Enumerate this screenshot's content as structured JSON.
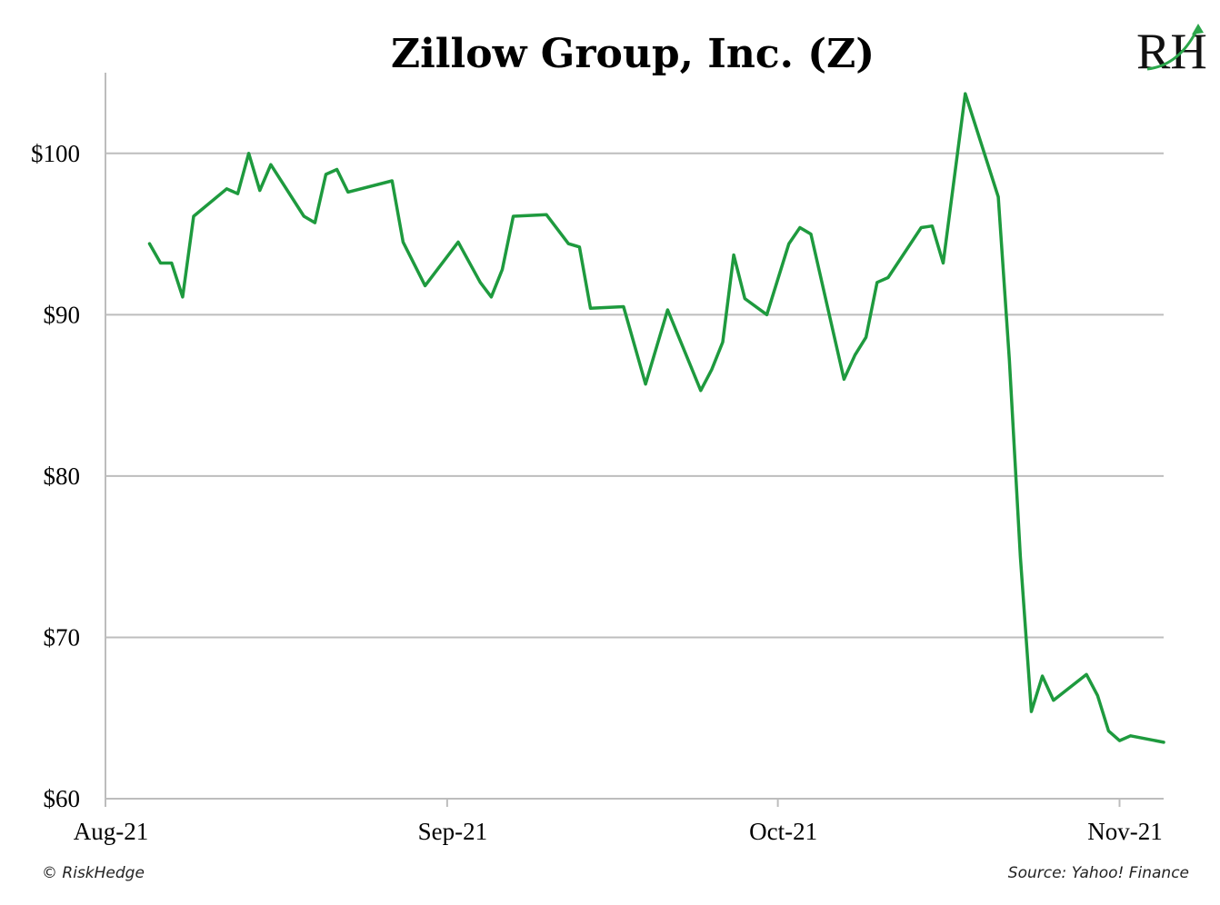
{
  "chart_data": {
    "type": "line",
    "title": "Zillow Group, Inc. (Z)",
    "xlabel": "",
    "ylabel": "",
    "ylim": [
      60,
      105
    ],
    "y_ticks": [
      60,
      70,
      80,
      90,
      100
    ],
    "y_tick_labels": [
      "$60",
      "$70",
      "$80",
      "$90",
      "$100"
    ],
    "x_ticks": [
      "2021-08-01",
      "2021-09-01",
      "2021-10-01",
      "2021-11-01"
    ],
    "x_tick_labels": [
      "Aug-21",
      "Sep-21",
      "Oct-21",
      "Nov-21"
    ],
    "xlim": [
      "2021-08-01",
      "2021-11-05"
    ],
    "grid": "horizontal",
    "line_color": "#1e9a3e",
    "series": [
      {
        "points": [
          [
            "2021-08-05",
            94.4
          ],
          [
            "2021-08-06",
            93.2
          ],
          [
            "2021-08-07",
            93.2
          ],
          [
            "2021-08-08",
            91.1
          ],
          [
            "2021-08-09",
            96.1
          ],
          [
            "2021-08-12",
            97.8
          ],
          [
            "2021-08-13",
            97.5
          ],
          [
            "2021-08-14",
            100.0
          ],
          [
            "2021-08-15",
            97.7
          ],
          [
            "2021-08-16",
            99.3
          ],
          [
            "2021-08-19",
            96.1
          ],
          [
            "2021-08-20",
            95.7
          ],
          [
            "2021-08-21",
            98.7
          ],
          [
            "2021-08-22",
            99.0
          ],
          [
            "2021-08-23",
            97.6
          ],
          [
            "2021-08-27",
            98.3
          ],
          [
            "2021-08-28",
            94.5
          ],
          [
            "2021-08-30",
            91.8
          ],
          [
            "2021-09-02",
            94.5
          ],
          [
            "2021-09-04",
            92.0
          ],
          [
            "2021-09-05",
            91.1
          ],
          [
            "2021-09-06",
            92.8
          ],
          [
            "2021-09-07",
            96.1
          ],
          [
            "2021-09-10",
            96.2
          ],
          [
            "2021-09-12",
            94.4
          ],
          [
            "2021-09-13",
            94.2
          ],
          [
            "2021-09-14",
            90.4
          ],
          [
            "2021-09-17",
            90.5
          ],
          [
            "2021-09-19",
            85.7
          ],
          [
            "2021-09-21",
            90.3
          ],
          [
            "2021-09-24",
            85.3
          ],
          [
            "2021-09-25",
            86.6
          ],
          [
            "2021-09-26",
            88.3
          ],
          [
            "2021-09-27",
            93.7
          ],
          [
            "2021-09-28",
            91.0
          ],
          [
            "2021-09-30",
            90.0
          ],
          [
            "2021-10-02",
            94.4
          ],
          [
            "2021-10-03",
            95.4
          ],
          [
            "2021-10-04",
            95.0
          ],
          [
            "2021-10-07",
            86.0
          ],
          [
            "2021-10-08",
            87.5
          ],
          [
            "2021-10-09",
            88.6
          ],
          [
            "2021-10-10",
            92.0
          ],
          [
            "2021-10-11",
            92.3
          ],
          [
            "2021-10-14",
            95.4
          ],
          [
            "2021-10-15",
            95.5
          ],
          [
            "2021-10-16",
            93.2
          ],
          [
            "2021-10-18",
            103.7
          ],
          [
            "2021-10-21",
            97.3
          ],
          [
            "2021-10-22",
            87.2
          ],
          [
            "2021-10-23",
            75.0
          ],
          [
            "2021-10-24",
            65.4
          ],
          [
            "2021-10-25",
            67.6
          ],
          [
            "2021-10-26",
            66.1
          ],
          [
            "2021-10-29",
            67.7
          ],
          [
            "2021-10-30",
            66.4
          ],
          [
            "2021-10-31",
            64.2
          ],
          [
            "2021-11-01",
            63.6
          ],
          [
            "2021-11-02",
            63.9
          ],
          [
            "2021-11-05",
            63.5
          ]
        ]
      }
    ]
  },
  "footer": {
    "copyright": "© RiskHedge",
    "source": "Source: Yahoo! Finance"
  },
  "logo": {
    "text": "RH"
  }
}
